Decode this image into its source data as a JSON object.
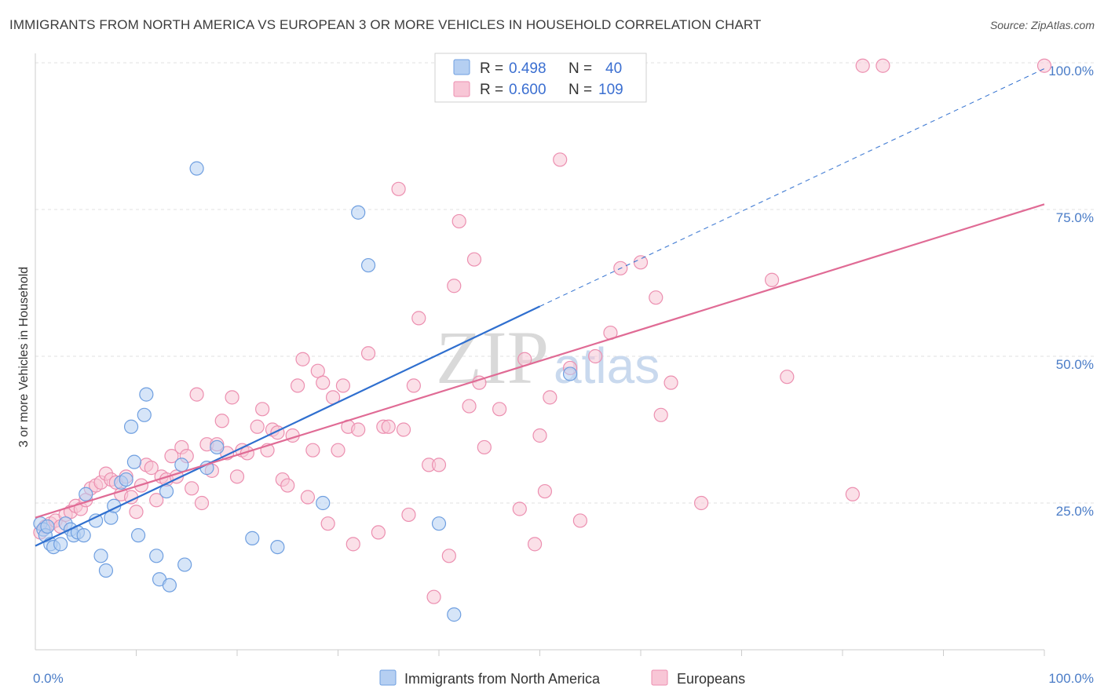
{
  "header": {
    "title": "IMMIGRANTS FROM NORTH AMERICA VS EUROPEAN 3 OR MORE VEHICLES IN HOUSEHOLD CORRELATION CHART",
    "source": "Source: ZipAtlas.com"
  },
  "watermark": {
    "zip": "ZIP",
    "atlas": "atlas"
  },
  "legend": {
    "r_label": "R =",
    "n_label": "N =",
    "rows": [
      {
        "r": "0.498",
        "n": "40",
        "color": "#a9c7ef"
      },
      {
        "r": "0.600",
        "n": "109",
        "color": "#f6b8cb"
      }
    ]
  },
  "bottom_legend": [
    "Immigrants from North America",
    "Europeans"
  ],
  "chart_data": {
    "type": "scatter",
    "title": "IMMIGRANTS FROM NORTH AMERICA VS EUROPEAN 3 OR MORE VEHICLES IN HOUSEHOLD CORRELATION CHART",
    "xlabel": "",
    "ylabel": "3 or more Vehicles in Household",
    "xlim": [
      0,
      100
    ],
    "ylim": [
      0,
      100
    ],
    "x_tick_labels": [
      "0.0%",
      "100.0%"
    ],
    "y_tick_labels": [
      "25.0%",
      "50.0%",
      "75.0%",
      "100.0%"
    ],
    "y_ticks": [
      25,
      50,
      75,
      100
    ],
    "grid": true,
    "legend_position": "top-center",
    "series": [
      {
        "name": "Immigrants from North America",
        "color": "#6f9fe0",
        "fill": "#b5cff2",
        "trend": {
          "x": [
            0,
            50
          ],
          "y": [
            17.7,
            58.5
          ],
          "extend_to": [
            100,
            99.0
          ],
          "color": "#2f6fcf"
        },
        "points": [
          [
            0.5,
            21.5
          ],
          [
            0.8,
            20.5
          ],
          [
            1.0,
            19.5
          ],
          [
            1.2,
            21.0
          ],
          [
            1.5,
            18.0
          ],
          [
            1.8,
            17.5
          ],
          [
            2.5,
            18.0
          ],
          [
            3.0,
            21.5
          ],
          [
            3.5,
            20.5
          ],
          [
            3.8,
            19.5
          ],
          [
            4.2,
            20.0
          ],
          [
            4.8,
            19.5
          ],
          [
            5.0,
            26.5
          ],
          [
            6.0,
            22.0
          ],
          [
            6.5,
            16.0
          ],
          [
            7.0,
            13.5
          ],
          [
            7.5,
            22.5
          ],
          [
            7.8,
            24.5
          ],
          [
            8.5,
            28.5
          ],
          [
            9.0,
            29.0
          ],
          [
            9.5,
            38.0
          ],
          [
            9.8,
            32.0
          ],
          [
            10.2,
            19.5
          ],
          [
            10.8,
            40.0
          ],
          [
            11.0,
            43.5
          ],
          [
            12.0,
            16.0
          ],
          [
            12.3,
            12.0
          ],
          [
            13.0,
            27.0
          ],
          [
            13.3,
            11.0
          ],
          [
            14.5,
            31.5
          ],
          [
            14.8,
            14.5
          ],
          [
            16.0,
            82.0
          ],
          [
            17.0,
            31.0
          ],
          [
            18.0,
            34.5
          ],
          [
            21.5,
            19.0
          ],
          [
            24.0,
            17.5
          ],
          [
            28.5,
            25.0
          ],
          [
            32.0,
            74.5
          ],
          [
            33.0,
            65.5
          ],
          [
            40.0,
            21.5
          ],
          [
            41.5,
            6.0
          ],
          [
            53.0,
            47.0
          ]
        ]
      },
      {
        "name": "Europeans",
        "color": "#ec8fb0",
        "fill": "#f8c6d6",
        "trend": {
          "x": [
            0,
            100
          ],
          "y": [
            22.5,
            75.9
          ],
          "color": "#e06b95"
        },
        "points": [
          [
            0.5,
            20.0
          ],
          [
            1.0,
            21.0
          ],
          [
            1.5,
            21.5
          ],
          [
            2.0,
            22.0
          ],
          [
            2.5,
            21.0
          ],
          [
            3.0,
            23.0
          ],
          [
            3.5,
            23.5
          ],
          [
            4.0,
            24.5
          ],
          [
            4.5,
            24.0
          ],
          [
            5.0,
            25.5
          ],
          [
            5.5,
            27.5
          ],
          [
            6.0,
            28.0
          ],
          [
            6.5,
            28.5
          ],
          [
            7.0,
            30.0
          ],
          [
            7.5,
            29.0
          ],
          [
            8.0,
            28.5
          ],
          [
            8.5,
            26.5
          ],
          [
            9.0,
            29.5
          ],
          [
            9.5,
            26.0
          ],
          [
            10.0,
            23.5
          ],
          [
            10.5,
            28.0
          ],
          [
            11.0,
            31.5
          ],
          [
            11.5,
            31.0
          ],
          [
            12.0,
            25.5
          ],
          [
            12.5,
            29.5
          ],
          [
            13.0,
            29.0
          ],
          [
            13.5,
            33.0
          ],
          [
            14.0,
            29.5
          ],
          [
            14.5,
            34.5
          ],
          [
            15.0,
            33.0
          ],
          [
            15.5,
            27.5
          ],
          [
            16.0,
            43.5
          ],
          [
            16.5,
            25.0
          ],
          [
            17.0,
            35.0
          ],
          [
            17.5,
            30.5
          ],
          [
            18.0,
            35.0
          ],
          [
            18.5,
            39.0
          ],
          [
            19.0,
            33.5
          ],
          [
            19.5,
            43.0
          ],
          [
            20.0,
            29.5
          ],
          [
            20.5,
            34.0
          ],
          [
            21.0,
            33.5
          ],
          [
            22.0,
            38.0
          ],
          [
            22.5,
            41.0
          ],
          [
            23.0,
            34.0
          ],
          [
            23.5,
            37.5
          ],
          [
            24.0,
            37.0
          ],
          [
            24.5,
            29.0
          ],
          [
            25.0,
            28.0
          ],
          [
            25.5,
            36.5
          ],
          [
            26.0,
            45.0
          ],
          [
            26.5,
            49.5
          ],
          [
            27.0,
            26.0
          ],
          [
            27.5,
            34.0
          ],
          [
            28.0,
            47.5
          ],
          [
            28.5,
            45.5
          ],
          [
            29.0,
            21.5
          ],
          [
            29.5,
            43.0
          ],
          [
            30.0,
            34.0
          ],
          [
            30.5,
            45.0
          ],
          [
            31.0,
            38.0
          ],
          [
            31.5,
            18.0
          ],
          [
            32.0,
            37.5
          ],
          [
            33.0,
            50.5
          ],
          [
            34.0,
            20.0
          ],
          [
            34.5,
            38.0
          ],
          [
            35.0,
            38.0
          ],
          [
            36.0,
            78.5
          ],
          [
            36.5,
            37.5
          ],
          [
            37.0,
            23.0
          ],
          [
            37.5,
            45.0
          ],
          [
            38.0,
            56.5
          ],
          [
            39.0,
            31.5
          ],
          [
            39.5,
            9.0
          ],
          [
            40.0,
            31.5
          ],
          [
            40.5,
            99.5
          ],
          [
            41.0,
            16.0
          ],
          [
            41.5,
            62.0
          ],
          [
            42.0,
            73.0
          ],
          [
            43.0,
            41.5
          ],
          [
            43.5,
            66.5
          ],
          [
            44.0,
            45.5
          ],
          [
            44.5,
            34.5
          ],
          [
            46.0,
            41.0
          ],
          [
            48.0,
            24.0
          ],
          [
            48.5,
            49.5
          ],
          [
            49.5,
            18.0
          ],
          [
            50.0,
            36.5
          ],
          [
            50.5,
            27.0
          ],
          [
            51.0,
            43.0
          ],
          [
            52.0,
            83.5
          ],
          [
            53.0,
            48.0
          ],
          [
            54.0,
            22.0
          ],
          [
            55.5,
            50.0
          ],
          [
            57.0,
            54.0
          ],
          [
            58.0,
            65.0
          ],
          [
            60.0,
            66.0
          ],
          [
            61.5,
            60.0
          ],
          [
            62.0,
            40.0
          ],
          [
            63.0,
            45.5
          ],
          [
            66.0,
            25.0
          ],
          [
            73.0,
            63.0
          ],
          [
            74.5,
            46.5
          ],
          [
            81.0,
            26.5
          ],
          [
            82.0,
            99.5
          ],
          [
            84.0,
            99.5
          ],
          [
            100.0,
            99.5
          ]
        ]
      }
    ]
  }
}
